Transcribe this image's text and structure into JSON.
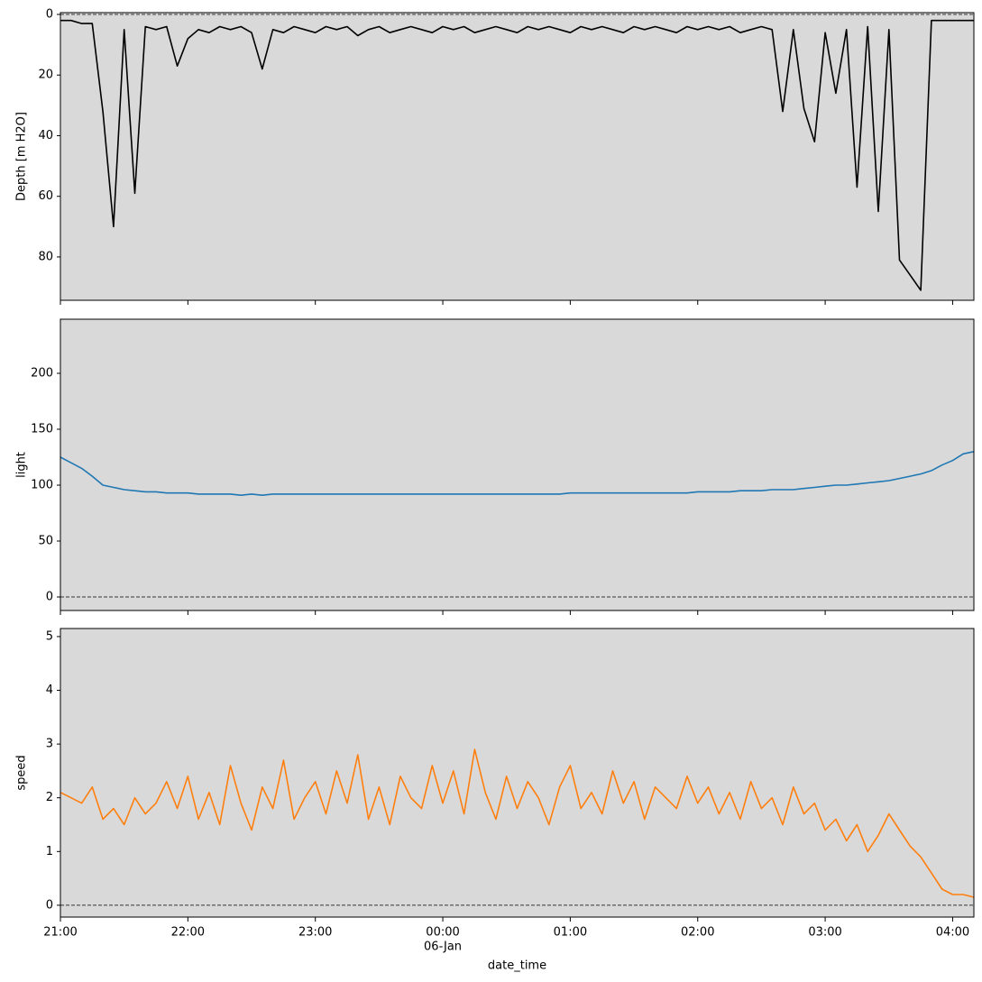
{
  "chart_data": [
    {
      "type": "line",
      "ylabel": "Depth [m H2O]",
      "color": "#000000",
      "background": "#d9d9d9",
      "xlim": [
        "21:00",
        "04:10"
      ],
      "ylim": [
        94.3,
        -0.6
      ],
      "yticks": [
        0,
        20,
        40,
        60,
        80
      ],
      "hlines": [
        0
      ],
      "xticks": [
        "21:00",
        "22:00",
        "23:00",
        "00:00",
        "01:00",
        "02:00",
        "03:00",
        "04:00"
      ],
      "xtick_labels": false,
      "x": [
        "21:00",
        "21:05",
        "21:10",
        "21:15",
        "21:20",
        "21:25",
        "21:30",
        "21:35",
        "21:40",
        "21:45",
        "21:50",
        "21:55",
        "22:00",
        "22:05",
        "22:10",
        "22:15",
        "22:20",
        "22:25",
        "22:30",
        "22:35",
        "22:40",
        "22:45",
        "22:50",
        "22:55",
        "23:00",
        "23:05",
        "23:10",
        "23:15",
        "23:20",
        "23:25",
        "23:30",
        "23:35",
        "23:40",
        "23:45",
        "23:50",
        "23:55",
        "00:00",
        "00:05",
        "00:10",
        "00:15",
        "00:20",
        "00:25",
        "00:30",
        "00:35",
        "00:40",
        "00:45",
        "00:50",
        "00:55",
        "01:00",
        "01:05",
        "01:10",
        "01:15",
        "01:20",
        "01:25",
        "01:30",
        "01:35",
        "01:40",
        "01:45",
        "01:50",
        "01:55",
        "02:00",
        "02:05",
        "02:10",
        "02:15",
        "02:20",
        "02:25",
        "02:30",
        "02:35",
        "02:40",
        "02:45",
        "02:50",
        "02:55",
        "03:00",
        "03:05",
        "03:10",
        "03:15",
        "03:20",
        "03:25",
        "03:30",
        "03:35",
        "03:40",
        "03:45",
        "03:50",
        "03:55",
        "04:00",
        "04:05",
        "04:10"
      ],
      "values": [
        2,
        2,
        3,
        3,
        32,
        70,
        5,
        59,
        4,
        5,
        4,
        17,
        8,
        5,
        6,
        4,
        5,
        4,
        6,
        18,
        5,
        6,
        4,
        5,
        6,
        4,
        5,
        4,
        7,
        5,
        4,
        6,
        5,
        4,
        5,
        6,
        4,
        5,
        4,
        6,
        5,
        4,
        5,
        6,
        4,
        5,
        4,
        5,
        6,
        4,
        5,
        4,
        5,
        6,
        4,
        5,
        4,
        5,
        6,
        4,
        5,
        4,
        5,
        4,
        6,
        5,
        4,
        5,
        32,
        5,
        31,
        42,
        6,
        26,
        5,
        57,
        4,
        65,
        5,
        81,
        86,
        91,
        2,
        2,
        2,
        2,
        2
      ]
    },
    {
      "type": "line",
      "ylabel": "light",
      "color": "#1f77b4",
      "background": "#d9d9d9",
      "xlim": [
        "21:00",
        "04:10"
      ],
      "ylim": [
        -12.1,
        248.4
      ],
      "yticks": [
        0,
        50,
        100,
        150,
        200
      ],
      "hlines": [
        0
      ],
      "xticks": [
        "21:00",
        "22:00",
        "23:00",
        "00:00",
        "01:00",
        "02:00",
        "03:00",
        "04:00"
      ],
      "xtick_labels": false,
      "x": [
        "21:00",
        "21:05",
        "21:10",
        "21:15",
        "21:20",
        "21:25",
        "21:30",
        "21:35",
        "21:40",
        "21:45",
        "21:50",
        "21:55",
        "22:00",
        "22:05",
        "22:10",
        "22:15",
        "22:20",
        "22:25",
        "22:30",
        "22:35",
        "22:40",
        "22:45",
        "22:50",
        "22:55",
        "23:00",
        "23:05",
        "23:10",
        "23:15",
        "23:20",
        "23:25",
        "23:30",
        "23:35",
        "23:40",
        "23:45",
        "23:50",
        "23:55",
        "00:00",
        "00:05",
        "00:10",
        "00:15",
        "00:20",
        "00:25",
        "00:30",
        "00:35",
        "00:40",
        "00:45",
        "00:50",
        "00:55",
        "01:00",
        "01:05",
        "01:10",
        "01:15",
        "01:20",
        "01:25",
        "01:30",
        "01:35",
        "01:40",
        "01:45",
        "01:50",
        "01:55",
        "02:00",
        "02:05",
        "02:10",
        "02:15",
        "02:20",
        "02:25",
        "02:30",
        "02:35",
        "02:40",
        "02:45",
        "02:50",
        "02:55",
        "03:00",
        "03:05",
        "03:10",
        "03:15",
        "03:20",
        "03:25",
        "03:30",
        "03:35",
        "03:40",
        "03:45",
        "03:50",
        "03:55",
        "04:00",
        "04:05",
        "04:10"
      ],
      "values": [
        125,
        120,
        115,
        108,
        100,
        98,
        96,
        95,
        94,
        94,
        93,
        93,
        93,
        92,
        92,
        92,
        92,
        91,
        92,
        91,
        92,
        92,
        92,
        92,
        92,
        92,
        92,
        92,
        92,
        92,
        92,
        92,
        92,
        92,
        92,
        92,
        92,
        92,
        92,
        92,
        92,
        92,
        92,
        92,
        92,
        92,
        92,
        92,
        93,
        93,
        93,
        93,
        93,
        93,
        93,
        93,
        93,
        93,
        93,
        93,
        94,
        94,
        94,
        94,
        95,
        95,
        95,
        96,
        96,
        96,
        97,
        98,
        99,
        100,
        100,
        101,
        102,
        103,
        104,
        106,
        108,
        110,
        113,
        118,
        122,
        128,
        130
      ]
    },
    {
      "type": "line",
      "ylabel": "speed",
      "xlabel": "date_time",
      "color": "#ff7f0e",
      "background": "#d9d9d9",
      "xlim": [
        "21:00",
        "04:10"
      ],
      "ylim": [
        -0.22,
        5.15
      ],
      "yticks": [
        0,
        1,
        2,
        3,
        4,
        5
      ],
      "hlines": [
        0
      ],
      "xticks": [
        "21:00",
        "22:00",
        "23:00",
        {
          "value": "00:00",
          "label": "00:00",
          "sublabel": "06-Jan"
        },
        "01:00",
        "02:00",
        "03:00",
        "04:00"
      ],
      "xtick_labels": true,
      "x": [
        "21:00",
        "21:05",
        "21:10",
        "21:15",
        "21:20",
        "21:25",
        "21:30",
        "21:35",
        "21:40",
        "21:45",
        "21:50",
        "21:55",
        "22:00",
        "22:05",
        "22:10",
        "22:15",
        "22:20",
        "22:25",
        "22:30",
        "22:35",
        "22:40",
        "22:45",
        "22:50",
        "22:55",
        "23:00",
        "23:05",
        "23:10",
        "23:15",
        "23:20",
        "23:25",
        "23:30",
        "23:35",
        "23:40",
        "23:45",
        "23:50",
        "23:55",
        "00:00",
        "00:05",
        "00:10",
        "00:15",
        "00:20",
        "00:25",
        "00:30",
        "00:35",
        "00:40",
        "00:45",
        "00:50",
        "00:55",
        "01:00",
        "01:05",
        "01:10",
        "01:15",
        "01:20",
        "01:25",
        "01:30",
        "01:35",
        "01:40",
        "01:45",
        "01:50",
        "01:55",
        "02:00",
        "02:05",
        "02:10",
        "02:15",
        "02:20",
        "02:25",
        "02:30",
        "02:35",
        "02:40",
        "02:45",
        "02:50",
        "02:55",
        "03:00",
        "03:05",
        "03:10",
        "03:15",
        "03:20",
        "03:25",
        "03:30",
        "03:35",
        "03:40",
        "03:45",
        "03:50",
        "03:55",
        "04:00",
        "04:05",
        "04:10"
      ],
      "values": [
        2.1,
        2.0,
        1.9,
        2.2,
        1.6,
        1.8,
        1.5,
        2.0,
        1.7,
        1.9,
        2.3,
        1.8,
        2.4,
        1.6,
        2.1,
        1.5,
        2.6,
        1.9,
        1.4,
        2.2,
        1.8,
        2.7,
        1.6,
        2.0,
        2.3,
        1.7,
        2.5,
        1.9,
        2.8,
        1.6,
        2.2,
        1.5,
        2.4,
        2.0,
        1.8,
        2.6,
        1.9,
        2.5,
        1.7,
        2.9,
        2.1,
        1.6,
        2.4,
        1.8,
        2.3,
        2.0,
        1.5,
        2.2,
        2.6,
        1.8,
        2.1,
        1.7,
        2.5,
        1.9,
        2.3,
        1.6,
        2.2,
        2.0,
        1.8,
        2.4,
        1.9,
        2.2,
        1.7,
        2.1,
        1.6,
        2.3,
        1.8,
        2.0,
        1.5,
        2.2,
        1.7,
        1.9,
        1.4,
        1.6,
        1.2,
        1.5,
        1.0,
        1.3,
        1.7,
        1.4,
        1.1,
        0.9,
        0.6,
        0.3,
        0.2,
        0.2,
        0.15
      ]
    }
  ]
}
